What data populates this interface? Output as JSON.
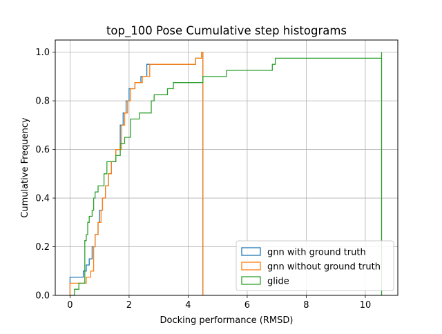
{
  "chart_data": {
    "type": "line",
    "title": "top_100 Pose Cumulative step histograms",
    "xlabel": "Docking performance (RMSD)",
    "ylabel": "Cumulative Frequency",
    "xlim": [
      -0.5,
      11.1
    ],
    "ylim": [
      0,
      1.05
    ],
    "x_ticks": [
      0,
      2,
      4,
      6,
      8,
      10
    ],
    "y_ticks": [
      0.0,
      0.2,
      0.4,
      0.6,
      0.8,
      1.0
    ],
    "grid": true,
    "legend_position": "lower-right",
    "series": [
      {
        "name": "gnn with ground truth",
        "color": "#1f77b4",
        "points": [
          [
            0.0,
            0.0
          ],
          [
            0.0,
            0.075
          ],
          [
            0.45,
            0.075
          ],
          [
            0.45,
            0.1
          ],
          [
            0.55,
            0.1
          ],
          [
            0.55,
            0.125
          ],
          [
            0.65,
            0.125
          ],
          [
            0.65,
            0.15
          ],
          [
            0.75,
            0.15
          ],
          [
            0.75,
            0.2
          ],
          [
            0.85,
            0.2
          ],
          [
            0.85,
            0.25
          ],
          [
            0.95,
            0.25
          ],
          [
            0.95,
            0.3
          ],
          [
            1.0,
            0.3
          ],
          [
            1.0,
            0.35
          ],
          [
            1.1,
            0.35
          ],
          [
            1.1,
            0.4
          ],
          [
            1.2,
            0.4
          ],
          [
            1.2,
            0.45
          ],
          [
            1.3,
            0.45
          ],
          [
            1.3,
            0.5
          ],
          [
            1.4,
            0.5
          ],
          [
            1.4,
            0.55
          ],
          [
            1.55,
            0.55
          ],
          [
            1.55,
            0.6
          ],
          [
            1.7,
            0.6
          ],
          [
            1.7,
            0.7
          ],
          [
            1.8,
            0.7
          ],
          [
            1.8,
            0.75
          ],
          [
            1.9,
            0.75
          ],
          [
            1.9,
            0.8
          ],
          [
            2.0,
            0.8
          ],
          [
            2.0,
            0.85
          ],
          [
            2.2,
            0.85
          ],
          [
            2.2,
            0.875
          ],
          [
            2.4,
            0.875
          ],
          [
            2.4,
            0.9
          ],
          [
            2.6,
            0.9
          ],
          [
            2.6,
            0.95
          ],
          [
            4.25,
            0.95
          ],
          [
            4.25,
            0.975
          ],
          [
            4.45,
            0.975
          ],
          [
            4.45,
            1.0
          ],
          [
            4.5,
            1.0
          ],
          [
            4.5,
            0.0
          ]
        ]
      },
      {
        "name": "gnn without ground truth",
        "color": "#ff7f0e",
        "points": [
          [
            0.0,
            0.0
          ],
          [
            0.0,
            0.05
          ],
          [
            0.55,
            0.05
          ],
          [
            0.55,
            0.075
          ],
          [
            0.7,
            0.075
          ],
          [
            0.7,
            0.1
          ],
          [
            0.8,
            0.1
          ],
          [
            0.8,
            0.2
          ],
          [
            0.85,
            0.2
          ],
          [
            0.85,
            0.25
          ],
          [
            0.95,
            0.25
          ],
          [
            0.95,
            0.3
          ],
          [
            1.05,
            0.3
          ],
          [
            1.05,
            0.35
          ],
          [
            1.1,
            0.35
          ],
          [
            1.1,
            0.4
          ],
          [
            1.2,
            0.4
          ],
          [
            1.2,
            0.45
          ],
          [
            1.3,
            0.45
          ],
          [
            1.3,
            0.5
          ],
          [
            1.4,
            0.5
          ],
          [
            1.4,
            0.55
          ],
          [
            1.55,
            0.55
          ],
          [
            1.55,
            0.6
          ],
          [
            1.75,
            0.6
          ],
          [
            1.75,
            0.7
          ],
          [
            1.85,
            0.7
          ],
          [
            1.85,
            0.75
          ],
          [
            1.95,
            0.75
          ],
          [
            1.95,
            0.8
          ],
          [
            2.05,
            0.8
          ],
          [
            2.05,
            0.85
          ],
          [
            2.2,
            0.85
          ],
          [
            2.2,
            0.875
          ],
          [
            2.45,
            0.875
          ],
          [
            2.45,
            0.9
          ],
          [
            2.7,
            0.9
          ],
          [
            2.7,
            0.95
          ],
          [
            4.25,
            0.95
          ],
          [
            4.25,
            0.975
          ],
          [
            4.45,
            0.975
          ],
          [
            4.45,
            1.0
          ],
          [
            4.5,
            1.0
          ],
          [
            4.5,
            0.0
          ]
        ]
      },
      {
        "name": "glide",
        "color": "#2ca02c",
        "points": [
          [
            0.0,
            0.0
          ],
          [
            0.15,
            0.0
          ],
          [
            0.15,
            0.025
          ],
          [
            0.3,
            0.025
          ],
          [
            0.3,
            0.05
          ],
          [
            0.5,
            0.05
          ],
          [
            0.5,
            0.225
          ],
          [
            0.55,
            0.225
          ],
          [
            0.55,
            0.25
          ],
          [
            0.6,
            0.25
          ],
          [
            0.6,
            0.3
          ],
          [
            0.65,
            0.3
          ],
          [
            0.65,
            0.325
          ],
          [
            0.75,
            0.325
          ],
          [
            0.75,
            0.35
          ],
          [
            0.8,
            0.35
          ],
          [
            0.8,
            0.4
          ],
          [
            0.85,
            0.4
          ],
          [
            0.85,
            0.425
          ],
          [
            0.95,
            0.425
          ],
          [
            0.95,
            0.45
          ],
          [
            1.15,
            0.45
          ],
          [
            1.15,
            0.5
          ],
          [
            1.25,
            0.5
          ],
          [
            1.25,
            0.55
          ],
          [
            1.55,
            0.55
          ],
          [
            1.55,
            0.575
          ],
          [
            1.7,
            0.575
          ],
          [
            1.7,
            0.625
          ],
          [
            1.85,
            0.625
          ],
          [
            1.85,
            0.65
          ],
          [
            2.05,
            0.65
          ],
          [
            2.05,
            0.725
          ],
          [
            2.35,
            0.725
          ],
          [
            2.35,
            0.75
          ],
          [
            2.75,
            0.75
          ],
          [
            2.75,
            0.8
          ],
          [
            2.85,
            0.8
          ],
          [
            2.85,
            0.825
          ],
          [
            3.3,
            0.825
          ],
          [
            3.3,
            0.85
          ],
          [
            3.5,
            0.85
          ],
          [
            3.5,
            0.875
          ],
          [
            4.5,
            0.875
          ],
          [
            4.5,
            0.9
          ],
          [
            5.3,
            0.9
          ],
          [
            5.3,
            0.925
          ],
          [
            6.85,
            0.925
          ],
          [
            6.85,
            0.95
          ],
          [
            6.95,
            0.95
          ],
          [
            6.95,
            0.975
          ],
          [
            10.55,
            0.975
          ],
          [
            10.55,
            1.0
          ],
          [
            10.55,
            0.0
          ]
        ]
      }
    ]
  }
}
